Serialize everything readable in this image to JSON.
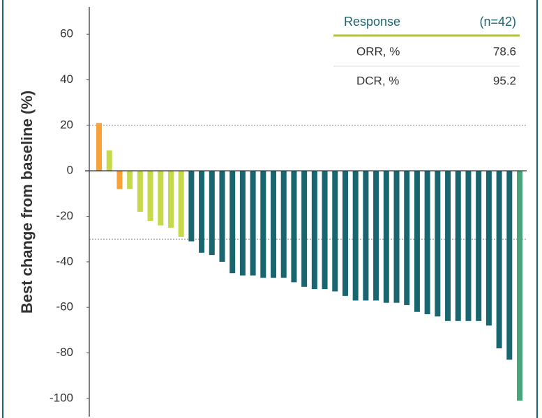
{
  "chart_data": {
    "type": "bar",
    "y_label": "Best change from baseline (%)",
    "values": [
      21,
      9,
      -8,
      -8,
      -18,
      -22,
      -24,
      -25,
      -29,
      -31,
      -36,
      -37,
      -40,
      -45,
      -46,
      -46,
      -47,
      -47,
      -47,
      -49,
      -51,
      -52,
      -52,
      -53,
      -55,
      -57,
      -57,
      -57,
      -58,
      -58,
      -59,
      -62,
      -63,
      -64,
      -66,
      -66,
      -66,
      -66,
      -68,
      -78,
      -83,
      -101
    ],
    "colors": [
      "#f7a23b",
      "#c5d94a",
      "#f7a23b",
      "#c5d94a",
      "#c5d94a",
      "#c5d94a",
      "#c5d94a",
      "#c5d94a",
      "#c5d94a",
      "#1a6670",
      "#1a6670",
      "#1a6670",
      "#1a6670",
      "#1a6670",
      "#1a6670",
      "#1a6670",
      "#1a6670",
      "#1a6670",
      "#1a6670",
      "#1a6670",
      "#1a6670",
      "#1a6670",
      "#1a6670",
      "#1a6670",
      "#1a6670",
      "#1a6670",
      "#1a6670",
      "#1a6670",
      "#1a6670",
      "#1a6670",
      "#1a6670",
      "#1a6670",
      "#1a6670",
      "#1a6670",
      "#1a6670",
      "#1a6670",
      "#1a6670",
      "#1a6670",
      "#1a6670",
      "#1a6670",
      "#1a6670",
      "#4aa57a"
    ],
    "ylim": [
      -108,
      72
    ],
    "yticks": [
      60,
      40,
      20,
      0,
      -20,
      -40,
      -60,
      -80,
      -100
    ],
    "reference_lines": [
      20,
      -30
    ],
    "table": {
      "header": [
        "Response",
        "(n=42)"
      ],
      "rows": [
        [
          "ORR, %",
          78.6
        ],
        [
          "DCR, %",
          95.2
        ]
      ]
    }
  }
}
